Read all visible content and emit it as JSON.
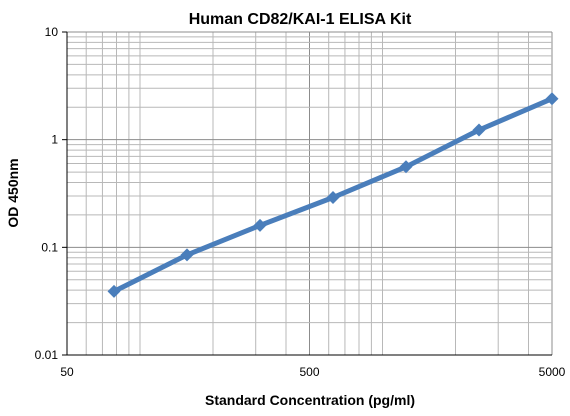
{
  "chart_data": {
    "type": "line",
    "title": "Human CD82/KAI-1 ELISA Kit",
    "xlabel": "Standard Concentration (pg/ml)",
    "ylabel": "OD 450nm",
    "x_scale": "log",
    "y_scale": "log",
    "xlim": [
      50,
      5000
    ],
    "ylim": [
      0.01,
      10
    ],
    "x_tick_labels": [
      "50",
      "500",
      "5000"
    ],
    "y_tick_labels": [
      "0.01",
      "0.1",
      "1",
      "10"
    ],
    "grid": true,
    "legend": "none",
    "series_color": "#4a7ebb",
    "series": [
      {
        "x": [
          78.13,
          156.25,
          312.5,
          625,
          1250,
          2500,
          5000
        ],
        "values": [
          0.039,
          0.085,
          0.16,
          0.29,
          0.56,
          1.23,
          2.4
        ]
      }
    ]
  }
}
